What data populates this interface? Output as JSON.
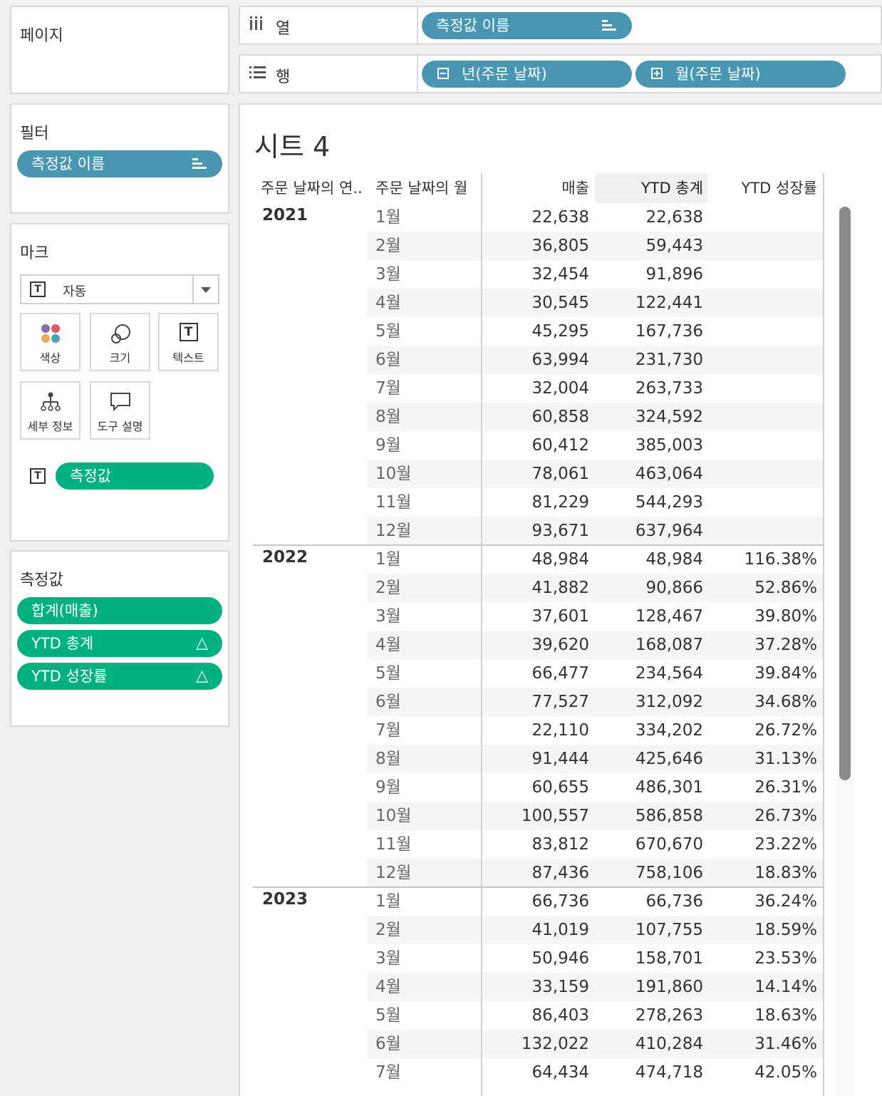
{
  "pages": {
    "title": "페이지"
  },
  "columns_shelf": {
    "label": "열",
    "pills": [
      "측정값 이름"
    ]
  },
  "rows_shelf": {
    "label": "행",
    "pills": [
      "년(주문 날짜)",
      "월(주문 날짜)"
    ]
  },
  "filters": {
    "title": "필터",
    "pills": [
      "측정값 이름"
    ]
  },
  "marks": {
    "title": "마크",
    "type": "자동",
    "buttons": {
      "color": "색상",
      "size": "크기",
      "text": "텍스트",
      "detail": "세부 정보",
      "tooltip": "도구 설명"
    },
    "text_pill": "측정값"
  },
  "measure_values": {
    "title": "측정값",
    "pills": [
      "합계(매출)",
      "YTD 총계",
      "YTD 성장률"
    ]
  },
  "sheet": {
    "title": "시트 4",
    "headers": [
      "주문 날짜의 연..",
      "주문 날짜의 월",
      "매출",
      "YTD 총계",
      "YTD 성장률"
    ],
    "groups": [
      {
        "year": "2021",
        "rows": [
          [
            "1월",
            "22,638",
            "22,638",
            ""
          ],
          [
            "2월",
            "36,805",
            "59,443",
            ""
          ],
          [
            "3월",
            "32,454",
            "91,896",
            ""
          ],
          [
            "4월",
            "30,545",
            "122,441",
            ""
          ],
          [
            "5월",
            "45,295",
            "167,736",
            ""
          ],
          [
            "6월",
            "63,994",
            "231,730",
            ""
          ],
          [
            "7월",
            "32,004",
            "263,733",
            ""
          ],
          [
            "8월",
            "60,858",
            "324,592",
            ""
          ],
          [
            "9월",
            "60,412",
            "385,003",
            ""
          ],
          [
            "10월",
            "78,061",
            "463,064",
            ""
          ],
          [
            "11월",
            "81,229",
            "544,293",
            ""
          ],
          [
            "12월",
            "93,671",
            "637,964",
            ""
          ]
        ]
      },
      {
        "year": "2022",
        "rows": [
          [
            "1월",
            "48,984",
            "48,984",
            "116.38%"
          ],
          [
            "2월",
            "41,882",
            "90,866",
            "52.86%"
          ],
          [
            "3월",
            "37,601",
            "128,467",
            "39.80%"
          ],
          [
            "4월",
            "39,620",
            "168,087",
            "37.28%"
          ],
          [
            "5월",
            "66,477",
            "234,564",
            "39.84%"
          ],
          [
            "6월",
            "77,527",
            "312,092",
            "34.68%"
          ],
          [
            "7월",
            "22,110",
            "334,202",
            "26.72%"
          ],
          [
            "8월",
            "91,444",
            "425,646",
            "31.13%"
          ],
          [
            "9월",
            "60,655",
            "486,301",
            "26.31%"
          ],
          [
            "10월",
            "100,557",
            "586,858",
            "26.73%"
          ],
          [
            "11월",
            "83,812",
            "670,670",
            "23.22%"
          ],
          [
            "12월",
            "87,436",
            "758,106",
            "18.83%"
          ]
        ]
      },
      {
        "year": "2023",
        "rows": [
          [
            "1월",
            "66,736",
            "66,736",
            "36.24%"
          ],
          [
            "2월",
            "41,019",
            "107,755",
            "18.59%"
          ],
          [
            "3월",
            "50,946",
            "158,701",
            "23.53%"
          ],
          [
            "4월",
            "33,159",
            "191,860",
            "14.14%"
          ],
          [
            "5월",
            "86,403",
            "278,263",
            "18.63%"
          ],
          [
            "6월",
            "132,022",
            "410,284",
            "31.46%"
          ],
          [
            "7월",
            "64,434",
            "474,718",
            "42.05%"
          ]
        ]
      }
    ]
  }
}
